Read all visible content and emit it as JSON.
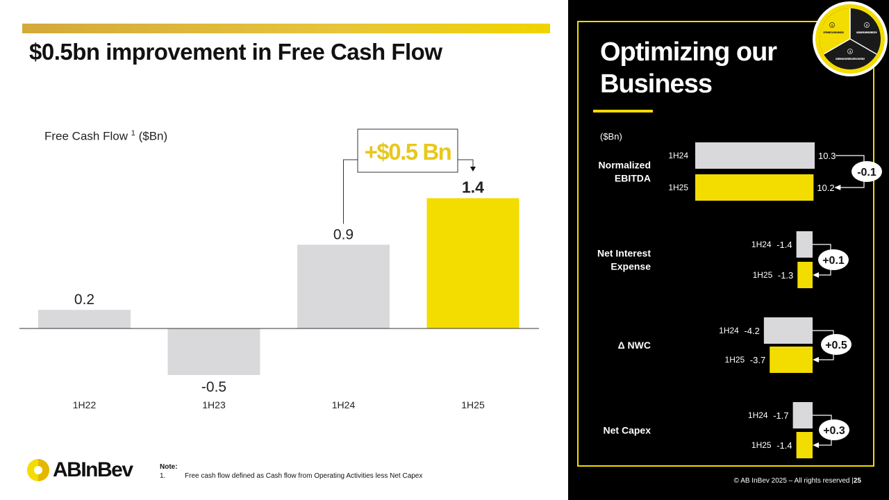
{
  "slide": {
    "title": "$0.5bn improvement in Free Cash Flow",
    "note_title": "Note:",
    "note_number": "1.",
    "note_text": "Free cash flow defined as Cash flow from Operating Activities less Net Capex",
    "logo_text": "ABInBev",
    "copyright": "© AB InBev 2025 – All rights reserved |",
    "page_number": "25"
  },
  "side_panel": {
    "title": "Optimizing our Business",
    "unit": "($Bn)",
    "wheel": {
      "optimize": "OPTIMIZE OUR BUSINESS",
      "lead": "LEAD & GROW THE CATEGORY",
      "digitize": "DIGITIZE & MONETIZE OUR ECOSYSTEM",
      "num1": "1",
      "num2": "2",
      "num3": "3"
    }
  },
  "colors": {
    "accent_yellow": "#f3dc00",
    "bar_grey": "#d9d9db",
    "text_yellow": "#e8c81a",
    "panel_bg": "#000000"
  },
  "chart_data": [
    {
      "type": "bar",
      "title": "",
      "ylabel": "Free Cash Flow",
      "ylabel_sup": "1",
      "ylabel_unit": "($Bn)",
      "categories": [
        "1H22",
        "1H23",
        "1H24",
        "1H25"
      ],
      "values": [
        0.2,
        -0.5,
        0.9,
        1.4
      ],
      "value_labels": [
        "0.2",
        "-0.5",
        "0.9",
        "1.4"
      ],
      "highlight": [
        false,
        false,
        false,
        true
      ],
      "ylim": [
        -0.7,
        1.75
      ],
      "annotation": {
        "text": "+$0.5 Bn",
        "from": "1H24",
        "to": "1H25"
      },
      "grid": false
    },
    {
      "type": "bar",
      "orientation": "horizontal",
      "groups": [
        {
          "label": "Normalized EBITDA",
          "label_lines": [
            "Normalized",
            "EBITDA"
          ],
          "anchor": "left",
          "series": [
            "1H24",
            "1H25"
          ],
          "values": [
            10.3,
            10.2
          ],
          "value_labels": [
            "10.3",
            "10.2"
          ],
          "delta": "-0.1"
        },
        {
          "label": "Net Interest Expense",
          "label_lines": [
            "Net Interest",
            "Expense"
          ],
          "anchor": "right",
          "series": [
            "1H24",
            "1H25"
          ],
          "values": [
            -1.4,
            -1.3
          ],
          "value_labels": [
            "-1.4",
            "-1.3"
          ],
          "delta": "+0.1"
        },
        {
          "label": "Δ NWC",
          "label_lines": [
            "Δ NWC"
          ],
          "anchor": "right",
          "series": [
            "1H24",
            "1H25"
          ],
          "values": [
            -4.2,
            -3.7
          ],
          "value_labels": [
            "-4.2",
            "-3.7"
          ],
          "delta": "+0.5"
        },
        {
          "label": "Net Capex",
          "label_lines": [
            "Net Capex"
          ],
          "anchor": "right",
          "series": [
            "1H24",
            "1H25"
          ],
          "values": [
            -1.7,
            -1.4
          ],
          "value_labels": [
            "-1.7",
            "-1.4"
          ],
          "delta": "+0.3"
        }
      ]
    }
  ]
}
